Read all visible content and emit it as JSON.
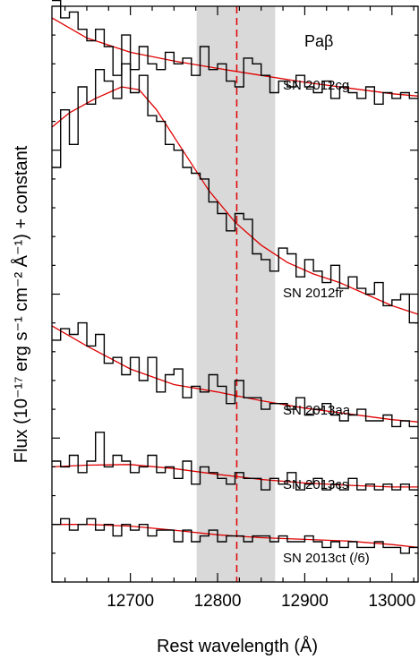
{
  "chart_data": {
    "type": "line",
    "title": "",
    "xlabel": "Rest wavelength (Å)",
    "ylabel": "Flux  (10⁻¹⁷ erg s⁻¹ cm⁻² Å⁻¹) + constant",
    "xlim": [
      12610,
      13030
    ],
    "ylim": [
      0,
      10
    ],
    "x_ticks": [
      12700,
      12800,
      12900,
      13000
    ],
    "line_label": "Paβ",
    "line_center": 12822,
    "shaded_band": [
      12776,
      12866
    ],
    "colors": {
      "observed": "#000000",
      "model": "#e00000",
      "band": "#d9d9d9",
      "marker": "#e00000"
    },
    "series": [
      {
        "name": "SN 2012cg",
        "observed": {
          "x": [
            12610,
            12620,
            12630,
            12640,
            12650,
            12660,
            12670,
            12680,
            12690,
            12700,
            12710,
            12720,
            12730,
            12740,
            12750,
            12760,
            12770,
            12780,
            12790,
            12800,
            12810,
            12820,
            12830,
            12840,
            12850,
            12860,
            12870,
            12880,
            12890,
            12900,
            12910,
            12920,
            12930,
            12940,
            12950,
            12960,
            12970,
            12980,
            12990,
            13000,
            13010,
            13020
          ],
          "y": [
            10.1,
            9.8,
            9.9,
            9.6,
            9.4,
            9.6,
            9.3,
            8.8,
            9.5,
            8.9,
            9.3,
            9.0,
            8.9,
            9.2,
            9.0,
            9.1,
            8.8,
            9.3,
            8.9,
            9.0,
            8.7,
            8.6,
            9.1,
            9.0,
            8.8,
            8.5,
            8.7,
            8.6,
            8.8,
            8.6,
            8.5,
            8.7,
            8.4,
            8.6,
            8.5,
            8.4,
            8.6,
            8.3,
            8.5,
            8.4,
            8.5,
            8.4
          ]
        },
        "model": {
          "x": [
            12610,
            12650,
            12700,
            12750,
            12800,
            12850,
            12900,
            12950,
            13000,
            13030
          ],
          "y": [
            9.8,
            9.45,
            9.2,
            9.05,
            8.92,
            8.8,
            8.68,
            8.58,
            8.48,
            8.44
          ]
        }
      },
      {
        "name": "SN 2012fr",
        "observed": {
          "x": [
            12610,
            12620,
            12630,
            12640,
            12650,
            12660,
            12670,
            12680,
            12690,
            12700,
            12710,
            12720,
            12730,
            12740,
            12750,
            12760,
            12770,
            12780,
            12790,
            12800,
            12810,
            12820,
            12830,
            12840,
            12850,
            12860,
            12870,
            12880,
            12890,
            12900,
            12910,
            12920,
            12930,
            12940,
            12950,
            12960,
            12970,
            12980,
            12990,
            13000,
            13010,
            13020
          ],
          "y": [
            7.2,
            8.2,
            7.6,
            8.6,
            8.3,
            8.9,
            8.7,
            8.4,
            9.0,
            8.5,
            8.8,
            8.1,
            8.0,
            7.6,
            7.5,
            7.2,
            7.1,
            7.0,
            6.6,
            6.4,
            6.1,
            6.4,
            6.3,
            5.7,
            5.6,
            5.4,
            5.8,
            5.7,
            5.3,
            5.6,
            5.4,
            5.2,
            5.5,
            5.1,
            5.3,
            5.1,
            5.0,
            5.2,
            4.8,
            4.9,
            5.0,
            4.5
          ]
        },
        "model": {
          "x": [
            12610,
            12630,
            12660,
            12690,
            12710,
            12730,
            12760,
            12790,
            12820,
            12850,
            12880,
            12910,
            12940,
            12970,
            13000,
            13030
          ],
          "y": [
            7.9,
            8.15,
            8.4,
            8.6,
            8.55,
            8.2,
            7.5,
            6.8,
            6.25,
            5.85,
            5.55,
            5.35,
            5.2,
            5.0,
            4.8,
            4.65
          ]
        }
      },
      {
        "name": "SN 2013aa",
        "observed": {
          "x": [
            12610,
            12620,
            12630,
            12640,
            12650,
            12660,
            12670,
            12680,
            12690,
            12700,
            12710,
            12720,
            12730,
            12740,
            12750,
            12760,
            12770,
            12780,
            12790,
            12800,
            12810,
            12820,
            12830,
            12840,
            12850,
            12860,
            12870,
            12880,
            12890,
            12900,
            12910,
            12920,
            12930,
            12940,
            12950,
            12960,
            12970,
            12980,
            12990,
            13000,
            13010,
            13020
          ],
          "y": [
            4.2,
            4.4,
            4.3,
            4.5,
            4.1,
            4.3,
            3.8,
            3.9,
            3.6,
            3.9,
            3.5,
            3.9,
            3.3,
            3.6,
            3.7,
            3.2,
            3.4,
            3.3,
            3.6,
            3.4,
            3.1,
            3.5,
            3.2,
            3.2,
            3.0,
            3.1,
            3.1,
            3.0,
            3.2,
            2.9,
            3.0,
            3.1,
            2.9,
            2.8,
            2.9,
            3.0,
            2.8,
            2.8,
            2.9,
            2.7,
            2.8,
            2.7
          ]
        },
        "model": {
          "x": [
            12610,
            12650,
            12700,
            12750,
            12800,
            12850,
            12900,
            12950,
            13000,
            13030
          ],
          "y": [
            4.45,
            4.1,
            3.7,
            3.43,
            3.3,
            3.15,
            3.02,
            2.92,
            2.82,
            2.78
          ]
        }
      },
      {
        "name": "SN 2013cs",
        "observed": {
          "x": [
            12610,
            12620,
            12630,
            12640,
            12650,
            12660,
            12670,
            12680,
            12690,
            12700,
            12710,
            12720,
            12730,
            12740,
            12750,
            12760,
            12770,
            12780,
            12790,
            12800,
            12810,
            12820,
            12830,
            12840,
            12850,
            12860,
            12870,
            12880,
            12890,
            12900,
            12910,
            12920,
            12930,
            12940,
            12950,
            12960,
            12970,
            12980,
            12990,
            13000,
            13010,
            13020
          ],
          "y": [
            2.1,
            2.0,
            2.2,
            1.9,
            2.1,
            2.6,
            2.0,
            2.2,
            2.1,
            1.9,
            2.0,
            2.2,
            1.9,
            2.0,
            1.8,
            2.1,
            1.7,
            2.0,
            1.9,
            1.8,
            1.7,
            1.9,
            1.8,
            1.8,
            1.6,
            1.8,
            1.7,
            1.9,
            1.6,
            1.7,
            1.8,
            1.6,
            1.7,
            1.6,
            1.8,
            1.6,
            1.7,
            1.6,
            1.7,
            1.6,
            1.7,
            1.6
          ]
        },
        "model": {
          "x": [
            12610,
            12650,
            12700,
            12750,
            12800,
            12850,
            12900,
            12950,
            13000,
            13030
          ],
          "y": [
            2.0,
            2.03,
            2.04,
            1.97,
            1.87,
            1.78,
            1.72,
            1.68,
            1.65,
            1.65
          ]
        }
      },
      {
        "name": "SN 2013ct (/6)",
        "observed": {
          "x": [
            12610,
            12620,
            12630,
            12640,
            12650,
            12660,
            12670,
            12680,
            12690,
            12700,
            12710,
            12720,
            12730,
            12740,
            12750,
            12760,
            12770,
            12780,
            12790,
            12800,
            12810,
            12820,
            12830,
            12840,
            12850,
            12860,
            12870,
            12880,
            12890,
            12900,
            12910,
            12920,
            12930,
            12940,
            12950,
            12960,
            12970,
            12980,
            12990,
            13000,
            13010,
            13020
          ],
          "y": [
            1.0,
            1.1,
            0.9,
            1.0,
            1.1,
            0.9,
            1.0,
            0.8,
            1.0,
            0.9,
            1.0,
            0.8,
            0.9,
            0.9,
            0.7,
            0.9,
            0.7,
            0.8,
            0.9,
            0.7,
            0.8,
            0.8,
            0.7,
            0.8,
            0.8,
            0.7,
            0.8,
            0.7,
            0.7,
            0.8,
            0.7,
            0.6,
            0.7,
            0.6,
            0.7,
            0.6,
            0.6,
            0.7,
            0.6,
            0.6,
            0.5,
            0.6
          ]
        },
        "model": {
          "x": [
            12610,
            12650,
            12700,
            12750,
            12800,
            12850,
            12900,
            12950,
            13000,
            13030
          ],
          "y": [
            1.0,
            1.0,
            0.97,
            0.9,
            0.82,
            0.77,
            0.74,
            0.71,
            0.65,
            0.6
          ]
        }
      }
    ]
  }
}
